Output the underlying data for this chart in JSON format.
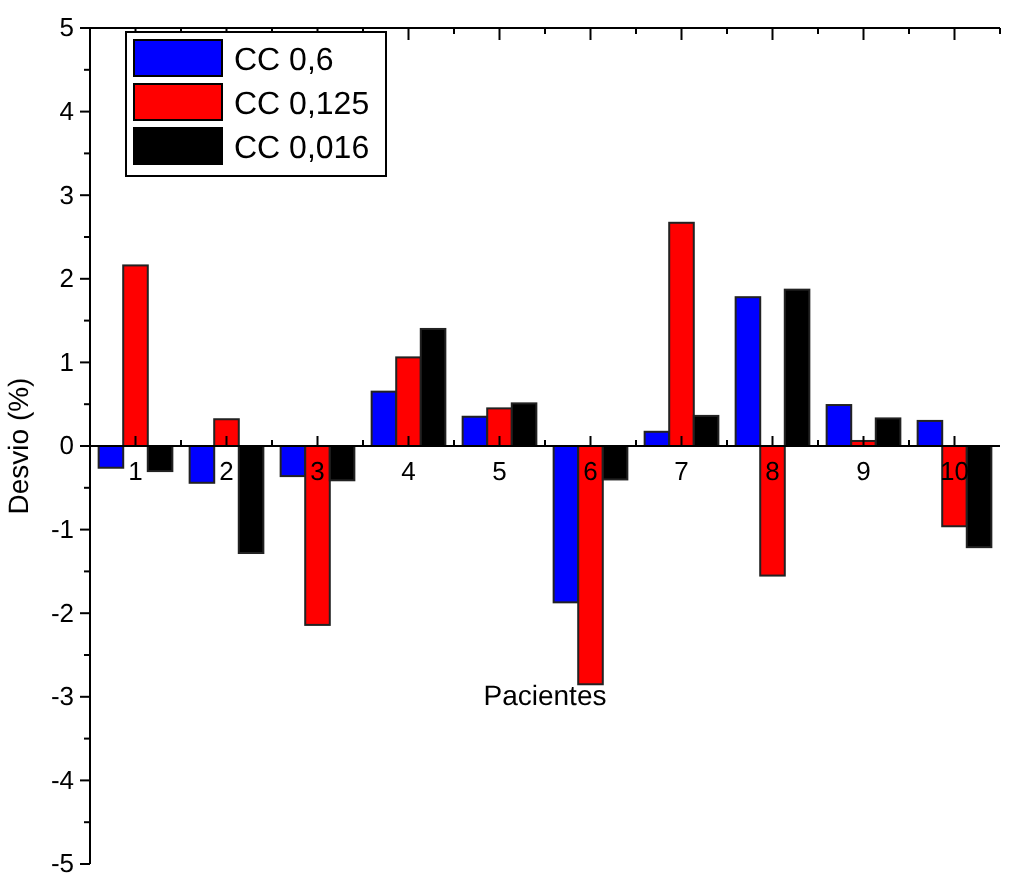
{
  "chart_data": {
    "type": "bar",
    "xlabel": "Pacientes",
    "ylabel": "Desvio (%)",
    "categories": [
      "1",
      "2",
      "3",
      "4",
      "5",
      "6",
      "7",
      "8",
      "9",
      "10"
    ],
    "series": [
      {
        "name": "CC 0,6",
        "color": "#0000ff",
        "values": [
          -0.26,
          -0.44,
          -0.36,
          0.65,
          0.35,
          -1.87,
          0.17,
          1.78,
          0.49,
          0.3
        ]
      },
      {
        "name": "CC 0,125",
        "color": "#ff0000",
        "values": [
          2.16,
          0.32,
          -2.14,
          1.06,
          0.45,
          -2.85,
          2.67,
          -1.55,
          0.06,
          -0.96
        ]
      },
      {
        "name": "CC 0,016",
        "color": "#000000",
        "values": [
          -0.3,
          -1.28,
          -0.41,
          1.4,
          0.51,
          -0.4,
          0.36,
          1.87,
          0.33,
          -1.21
        ]
      }
    ],
    "ylim": [
      -5,
      5
    ],
    "yticks": [
      -5,
      -4,
      -3,
      -2,
      -1,
      0,
      1,
      2,
      3,
      4,
      5
    ],
    "grid": false,
    "legend": "top left"
  }
}
